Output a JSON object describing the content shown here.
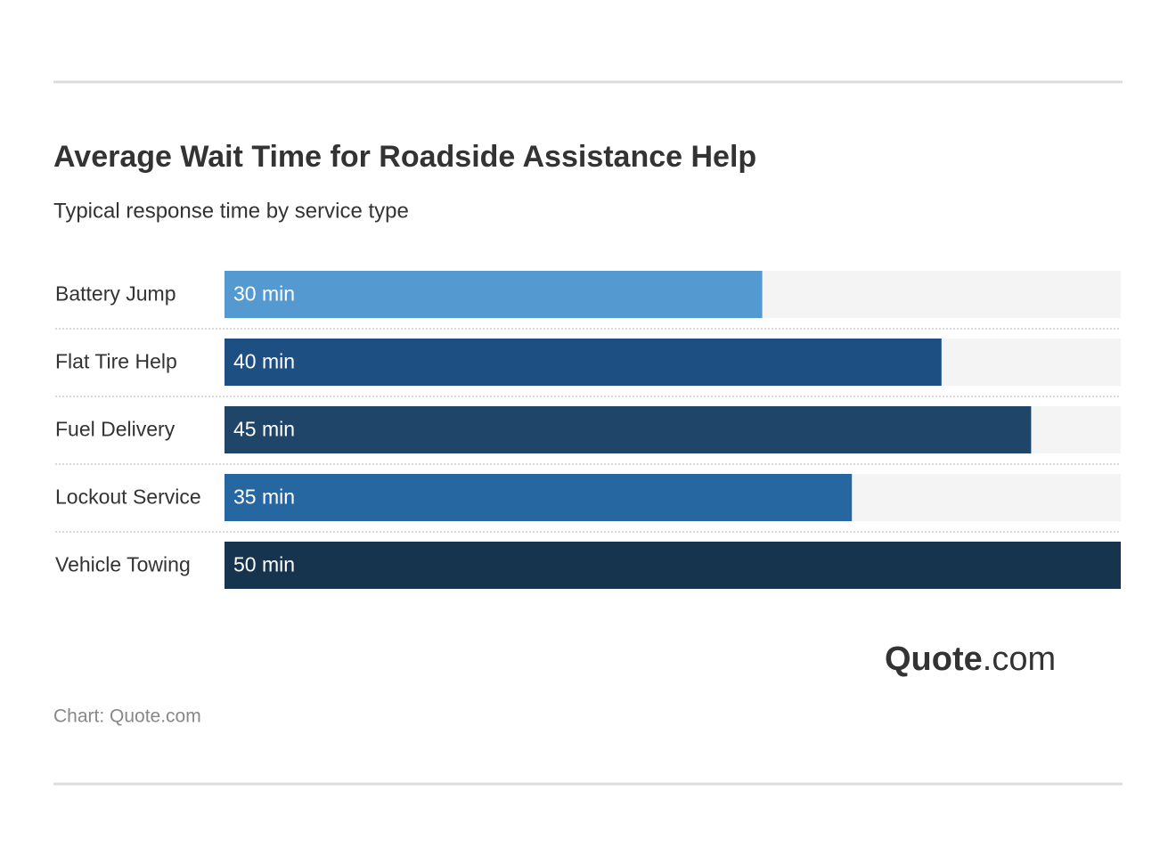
{
  "chart_data": {
    "type": "hbar",
    "title": "Average Wait Time for Roadside Assistance Help",
    "subtitle": "Typical response time by service type",
    "categories": [
      "Battery Jump",
      "Flat Tire Help",
      "Fuel Delivery",
      "Lockout Service",
      "Vehicle Towing"
    ],
    "values": [
      30,
      40,
      45,
      35,
      50
    ],
    "value_labels": [
      "30 min",
      "40 min",
      "45 min",
      "35 min",
      "50 min"
    ],
    "colors": [
      "#5499d0",
      "#1e4f82",
      "#1f4568",
      "#2767a1",
      "#17344f"
    ],
    "xlim": [
      0,
      50
    ],
    "source": "Chart: Quote.com",
    "logo": {
      "brand": "Quote",
      "suffix": ".com"
    }
  }
}
